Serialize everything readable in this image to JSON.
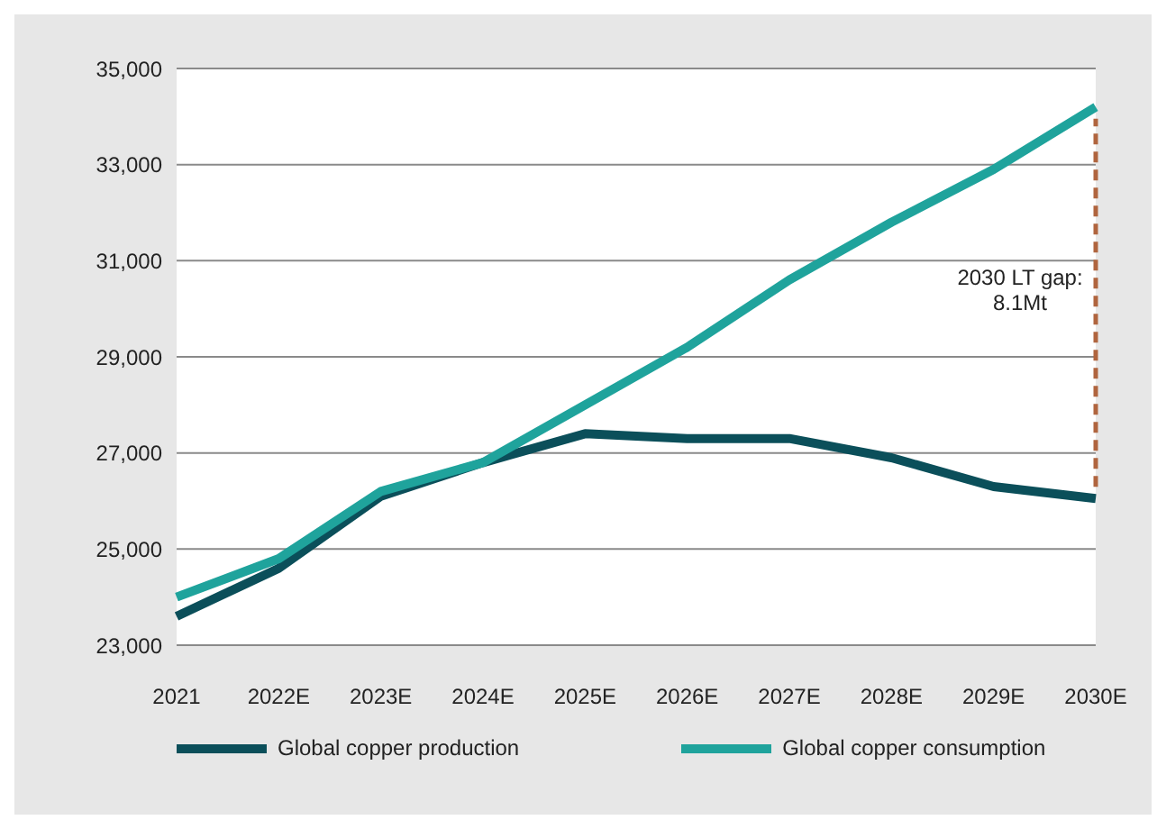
{
  "chart_data": {
    "type": "line",
    "categories": [
      "2021",
      "2022E",
      "2023E",
      "2024E",
      "2025E",
      "2026E",
      "2027E",
      "2028E",
      "2029E",
      "2030E"
    ],
    "series": [
      {
        "name": "Global copper production",
        "color": "#0b4f5a",
        "values": [
          23600,
          24600,
          26100,
          26800,
          27400,
          27300,
          27300,
          26900,
          26300,
          26050
        ]
      },
      {
        "name": "Global copper consumption",
        "color": "#1fa39c",
        "values": [
          24000,
          24800,
          26200,
          26800,
          28000,
          29200,
          30600,
          31800,
          32900,
          34200
        ]
      }
    ],
    "ylim": [
      23000,
      35000
    ],
    "yticks": [
      {
        "value": 23000,
        "label": "23,000"
      },
      {
        "value": 25000,
        "label": "25,000"
      },
      {
        "value": 27000,
        "label": "27,000"
      },
      {
        "value": 29000,
        "label": "29,000"
      },
      {
        "value": 31000,
        "label": "31,000"
      },
      {
        "value": 33000,
        "label": "33,000"
      },
      {
        "value": 35000,
        "label": "35,000"
      }
    ],
    "grid": "y",
    "legend": "bottom",
    "marker": "none",
    "line_style": "solid",
    "ref_lines": [
      {
        "axis": "x",
        "value": "2030E",
        "color": "#b0653f",
        "line_style": "dashed",
        "label": "2030 LT gap:\n8.1Mt"
      }
    ]
  }
}
